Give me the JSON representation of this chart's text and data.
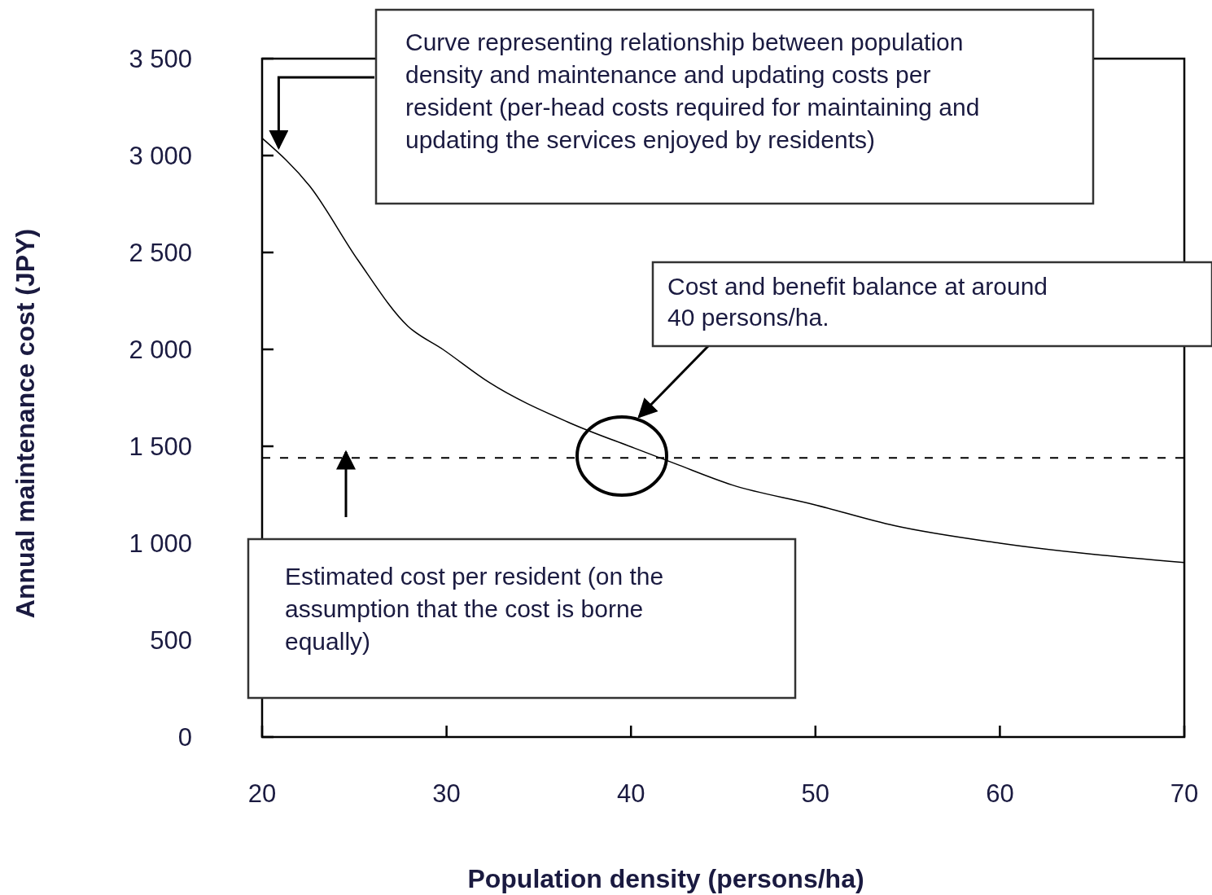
{
  "chart_data": {
    "type": "line",
    "xlabel": "Population density (persons/ha)",
    "ylabel": "Annual maintenance cost (JPY)",
    "xlim": [
      20,
      70
    ],
    "xticks": [
      20,
      30,
      40,
      50,
      60,
      70
    ],
    "ylim": [
      0,
      3500
    ],
    "yticks": [
      0,
      500,
      {
        "value": 1000,
        "label": "1 000"
      },
      {
        "value": 1500,
        "label": "1 500"
      },
      {
        "value": 2000,
        "label": "2 000"
      },
      {
        "value": 2500,
        "label": "2 500"
      },
      {
        "value": 3000,
        "label": "3 000"
      },
      {
        "value": 3500,
        "label": "3 500"
      }
    ],
    "x": [
      20,
      22.6,
      25.2,
      27.9,
      29.8,
      32.3,
      36.7,
      40.2,
      42.4,
      45.5,
      49.9,
      54.3,
      60,
      70
    ],
    "series": [
      {
        "color": "#000000",
        "values": [
          3090,
          2840,
          2460,
          2120,
          2000,
          1830,
          1620,
          1490,
          1410,
          1300,
          1200,
          1090,
          1000,
          900
        ]
      }
    ],
    "ref_lines": [
      {
        "axis": "y",
        "value": 1440,
        "line_style": "dashed",
        "color": "#000000"
      }
    ],
    "annotations": [
      {
        "text": "Curve representing relationship between population density and maintenance and updating costs per resident (per-head costs required for maintaining and updating the services enjoyed by residents)",
        "x": 20.9,
        "y": 3040
      },
      "Cost and benefit balance at around 40 persons/ha.",
      "Estimated cost per resident (on the assumption that the cost is borne equally)"
    ],
    "grid": false,
    "marker": "none",
    "line_style": "solid"
  }
}
